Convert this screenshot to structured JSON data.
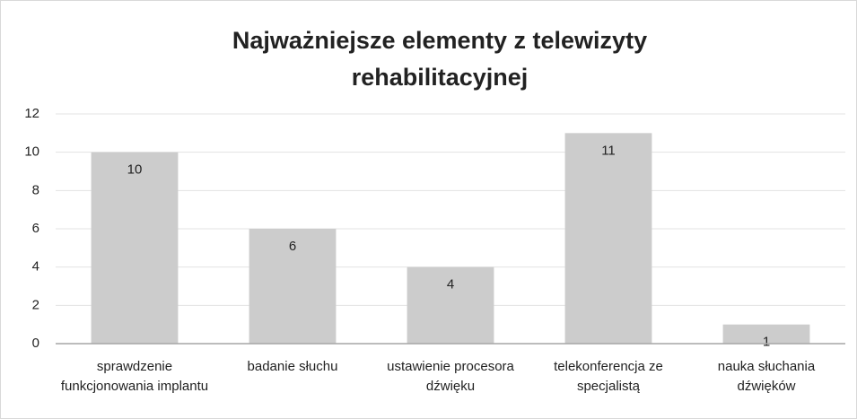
{
  "chart_data": {
    "type": "bar",
    "title": [
      "Najważniejsze elementy z telewizyty",
      "rehabilitacyjnej"
    ],
    "categories": [
      "sprawdzenie funkcjonowania implantu",
      "badanie słuchu",
      "ustawienie procesora dźwięku",
      "telekonferencja  ze specjalistą",
      "nauka słuchania dźwięków"
    ],
    "values": [
      10,
      6,
      4,
      11,
      1
    ],
    "color": "#cccccc",
    "ylim": [
      0,
      12
    ],
    "yticks": [
      0,
      2,
      4,
      6,
      8,
      10,
      12
    ],
    "grid": true
  }
}
